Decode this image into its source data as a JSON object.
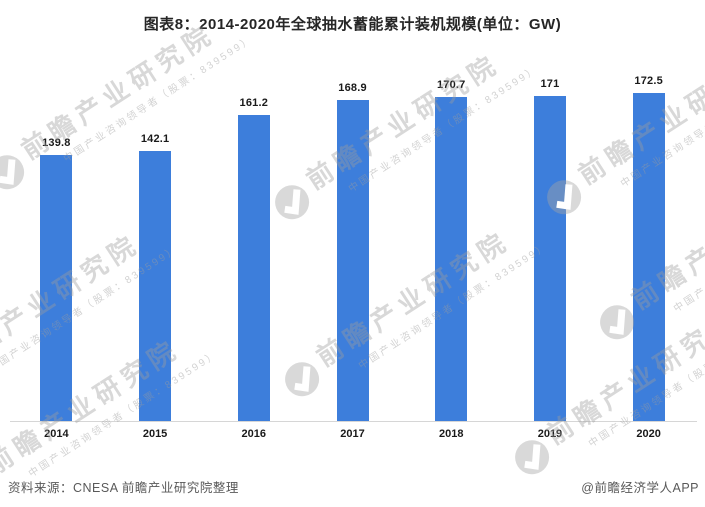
{
  "chart_data": {
    "type": "bar",
    "title": "图表8：2014-2020年全球抽水蓄能累计装机规模(单位：GW)",
    "unit": "GW",
    "categories": [
      "2014",
      "2015",
      "2016",
      "2017",
      "2018",
      "2019",
      "2020"
    ],
    "values": [
      139.8,
      142.1,
      161.2,
      168.9,
      170.7,
      171,
      172.5
    ],
    "value_labels": [
      "139.8",
      "142.1",
      "161.2",
      "168.9",
      "170.7",
      "171",
      "172.5"
    ],
    "xlabel": "",
    "ylabel": "",
    "ylim": [
      0,
      222
    ],
    "grid": false,
    "legend": "none",
    "bar_color": "#3D7EDB"
  },
  "footer": {
    "source": "资料来源：CNESA 前瞻产业研究院整理",
    "credit": "@前瞻经济学人APP"
  },
  "watermark": {
    "brand": "前瞻产业研究院",
    "tagline": "中国产业咨询领导者（股票：839599）"
  },
  "colors": {
    "bar": "#3D7EDB",
    "title_text": "#262626",
    "axis_line": "#D6D6D6",
    "label_text": "#1A1A1A",
    "footer_text": "#595959",
    "watermark_gray": "#9E9E9E",
    "background": "#FFFFFF"
  }
}
